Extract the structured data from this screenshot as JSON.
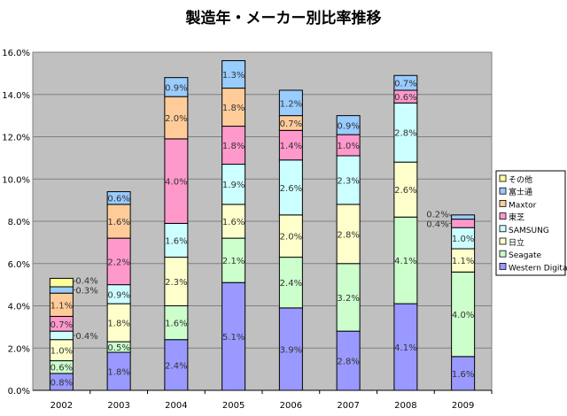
{
  "chart_data": {
    "type": "bar",
    "stacked": true,
    "title": "製造年・メーカー別比率推移",
    "xlabel": "",
    "ylabel": "",
    "ylim": [
      0,
      16
    ],
    "yticks": [
      "0.0%",
      "2.0%",
      "4.0%",
      "6.0%",
      "8.0%",
      "10.0%",
      "12.0%",
      "14.0%",
      "16.0%"
    ],
    "grid": true,
    "legend_position": "right",
    "categories": [
      "2002",
      "2003",
      "2004",
      "2005",
      "2006",
      "2007",
      "2008",
      "2009"
    ],
    "series": [
      {
        "name": "Western Digital",
        "color": "#9999FF",
        "values": [
          0.8,
          1.8,
          2.4,
          5.1,
          3.9,
          2.8,
          4.1,
          1.6
        ]
      },
      {
        "name": "Seagate",
        "color": "#CCFFCC",
        "values": [
          0.6,
          0.5,
          1.6,
          2.1,
          2.4,
          3.2,
          4.1,
          4.0
        ]
      },
      {
        "name": "日立",
        "color": "#FFFFCC",
        "values": [
          1.0,
          1.8,
          2.3,
          1.6,
          2.0,
          2.8,
          2.6,
          1.1
        ]
      },
      {
        "name": "SAMSUNG",
        "color": "#CCFFFF",
        "values": [
          0.4,
          0.9,
          1.6,
          1.9,
          2.6,
          2.3,
          2.8,
          1.0
        ]
      },
      {
        "name": "東芝",
        "color": "#FF99CC",
        "values": [
          0.7,
          2.2,
          4.0,
          1.8,
          1.4,
          1.0,
          0.6,
          0.4
        ]
      },
      {
        "name": "Maxtor",
        "color": "#FFCC99",
        "values": [
          1.1,
          1.6,
          2.0,
          1.8,
          0.7,
          0,
          0,
          0
        ]
      },
      {
        "name": "富士通",
        "color": "#99CCFF",
        "values": [
          0.3,
          0.6,
          0.9,
          1.3,
          1.2,
          0.9,
          0.7,
          0.2
        ]
      },
      {
        "name": "その他",
        "color": "#FFFF99",
        "values": [
          0.4,
          0,
          0,
          0,
          0,
          0,
          0,
          0
        ]
      }
    ],
    "plot_background": "#C0C0C0"
  }
}
